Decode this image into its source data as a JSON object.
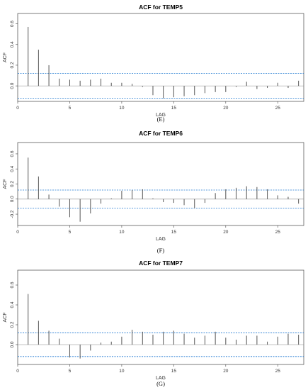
{
  "chart_data": [
    {
      "type": "bar",
      "title": "ACF for TEMP5",
      "xlabel": "LAG",
      "ylabel": "ACF",
      "caption": "(E)",
      "xlim": [
        0,
        27.5
      ],
      "ylim": [
        -0.15,
        0.7
      ],
      "x_ticks": [
        0,
        5,
        10,
        15,
        20,
        25
      ],
      "y_ticks": [
        0.0,
        0.2,
        0.4,
        0.6
      ],
      "y_tick_labels": [
        "0.0",
        "0.2",
        "0.4",
        "0.6"
      ],
      "ci": 0.12,
      "lags": [
        1,
        2,
        3,
        4,
        5,
        6,
        7,
        8,
        9,
        10,
        11,
        12,
        13,
        14,
        15,
        16,
        17,
        18,
        19,
        20,
        21,
        22,
        23,
        24,
        25,
        26,
        27
      ],
      "values": [
        0.57,
        0.35,
        0.2,
        0.07,
        0.06,
        0.05,
        0.06,
        0.07,
        0.03,
        0.03,
        0.02,
        -0.01,
        -0.09,
        -0.12,
        -0.11,
        -0.1,
        -0.09,
        -0.07,
        -0.06,
        -0.06,
        -0.01,
        0.04,
        -0.03,
        -0.02,
        0.03,
        -0.02,
        0.05
      ],
      "bar_color": "#555555",
      "ci_color": "#1f78d1"
    },
    {
      "type": "bar",
      "title": "ACF for TEMP6",
      "xlabel": "LAG",
      "ylabel": "ACF",
      "caption": "(F)",
      "xlim": [
        0,
        27.5
      ],
      "ylim": [
        -0.35,
        0.75
      ],
      "x_ticks": [
        0,
        5,
        10,
        15,
        20,
        25
      ],
      "y_ticks": [
        -0.2,
        0.0,
        0.2,
        0.4,
        0.6
      ],
      "y_tick_labels": [
        "-0.2",
        "0.0",
        "0.2",
        "0.4",
        "0.6"
      ],
      "ci": 0.12,
      "lags": [
        1,
        2,
        3,
        4,
        5,
        6,
        7,
        8,
        9,
        10,
        11,
        12,
        13,
        14,
        15,
        16,
        17,
        18,
        19,
        20,
        21,
        22,
        23,
        24,
        25,
        26,
        27
      ],
      "values": [
        0.55,
        0.3,
        0.06,
        -0.1,
        -0.24,
        -0.3,
        -0.19,
        -0.06,
        0.01,
        0.11,
        0.12,
        0.13,
        0.01,
        -0.04,
        -0.05,
        -0.08,
        -0.12,
        -0.05,
        0.08,
        0.13,
        0.15,
        0.17,
        0.16,
        0.13,
        0.05,
        0.03,
        -0.06
      ],
      "bar_color": "#555555",
      "ci_color": "#1f78d1"
    },
    {
      "type": "bar",
      "title": "ACF for TEMP7",
      "xlabel": "LAG",
      "ylabel": "ACF",
      "caption": "(G)",
      "xlim": [
        0,
        27.5
      ],
      "ylim": [
        -0.2,
        0.75
      ],
      "x_ticks": [
        0,
        5,
        10,
        15,
        20,
        25
      ],
      "y_ticks": [
        0.0,
        0.2,
        0.4,
        0.6
      ],
      "y_tick_labels": [
        "0.0",
        "0.2",
        "0.4",
        "0.6"
      ],
      "ci": 0.12,
      "lags": [
        1,
        2,
        3,
        4,
        5,
        6,
        7,
        8,
        9,
        10,
        11,
        12,
        13,
        14,
        15,
        16,
        17,
        18,
        19,
        20,
        21,
        22,
        23,
        24,
        25,
        26,
        27
      ],
      "values": [
        0.51,
        0.24,
        0.14,
        0.06,
        -0.13,
        -0.14,
        -0.06,
        0.02,
        0.03,
        0.08,
        0.15,
        0.13,
        0.1,
        0.13,
        0.14,
        0.11,
        0.07,
        0.09,
        0.13,
        0.07,
        0.05,
        0.09,
        0.09,
        0.03,
        0.08,
        0.11,
        0.1
      ],
      "bar_color": "#555555",
      "ci_color": "#1f78d1"
    }
  ]
}
